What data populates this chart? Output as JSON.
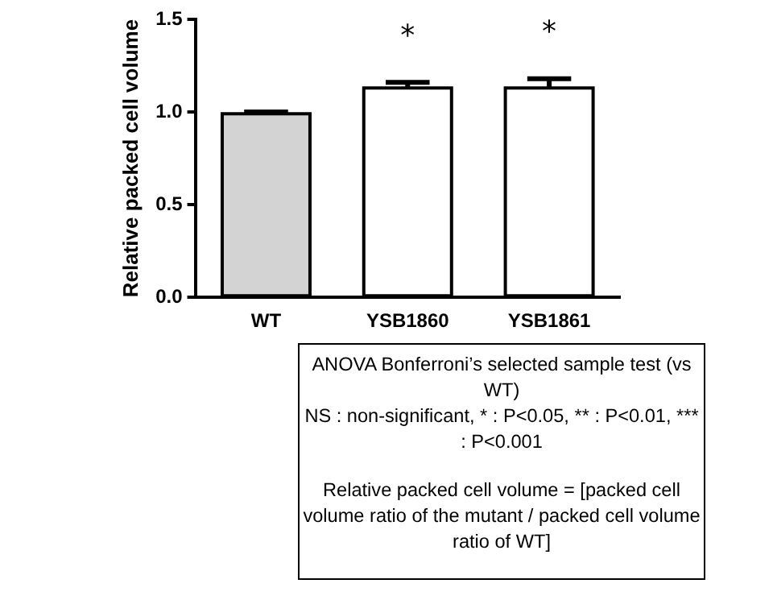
{
  "chart_data": {
    "type": "bar",
    "ylabel": "Relative packed cell volume",
    "categories": [
      "WT",
      "YSB1860",
      "YSB1861"
    ],
    "values": [
      0.99,
      1.13,
      1.13
    ],
    "colors": [
      "#d3d3d3",
      "#ffffff",
      "#ffffff"
    ],
    "errors": [
      [
        0.99,
        1.0
      ],
      [
        1.13,
        1.16
      ],
      [
        1.13,
        1.18
      ]
    ],
    "value_labels": [
      null,
      "*",
      "*"
    ],
    "ylim": [
      0,
      1.5
    ],
    "yticks": [
      {
        "value": 0,
        "label": "0.0"
      },
      0.5,
      {
        "value": 1,
        "label": "1.0"
      },
      1.5
    ],
    "grid": false,
    "legend": false,
    "annotations": [
      "ANOVA Bonferroni’s selected sample test (vs WT)",
      "NS : non-significant, * : P<0.05, ** : P<0.01, *** : P<0.001",
      "Relative packed cell volume = [packed cell volume ratio of the mutant / packed cell volume ratio of WT]"
    ]
  }
}
